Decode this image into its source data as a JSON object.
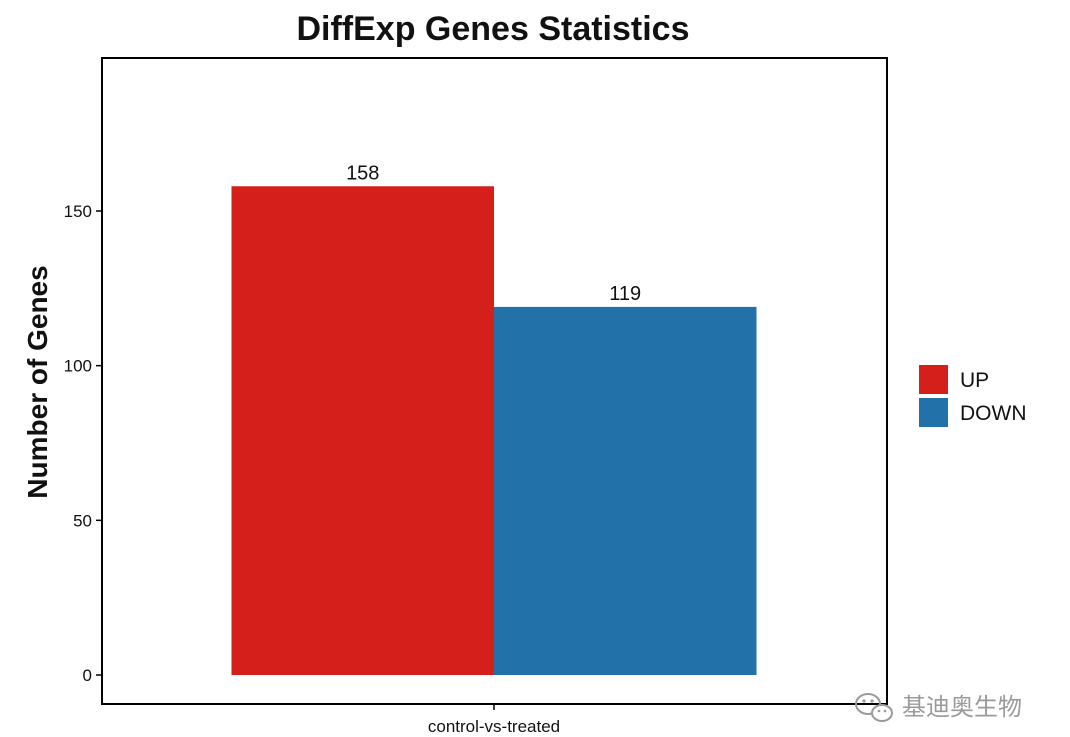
{
  "chart_data": {
    "type": "bar",
    "title": "DiffExp Genes Statistics",
    "xlabel": "",
    "ylabel": "Number of Genes",
    "categories": [
      "control-vs-treated"
    ],
    "series": [
      {
        "name": "UP",
        "values": [
          158
        ],
        "color": "#d51f1b"
      },
      {
        "name": "DOWN",
        "values": [
          119
        ],
        "color": "#2271a8"
      }
    ],
    "ylim": [
      0,
      190
    ],
    "yticks": [
      0,
      50,
      100,
      150
    ],
    "data_labels": [
      "158",
      "119"
    ],
    "grid": false,
    "legend_position": "right"
  },
  "watermark": {
    "text": "基迪奥生物",
    "icon": "wechat-icon"
  }
}
